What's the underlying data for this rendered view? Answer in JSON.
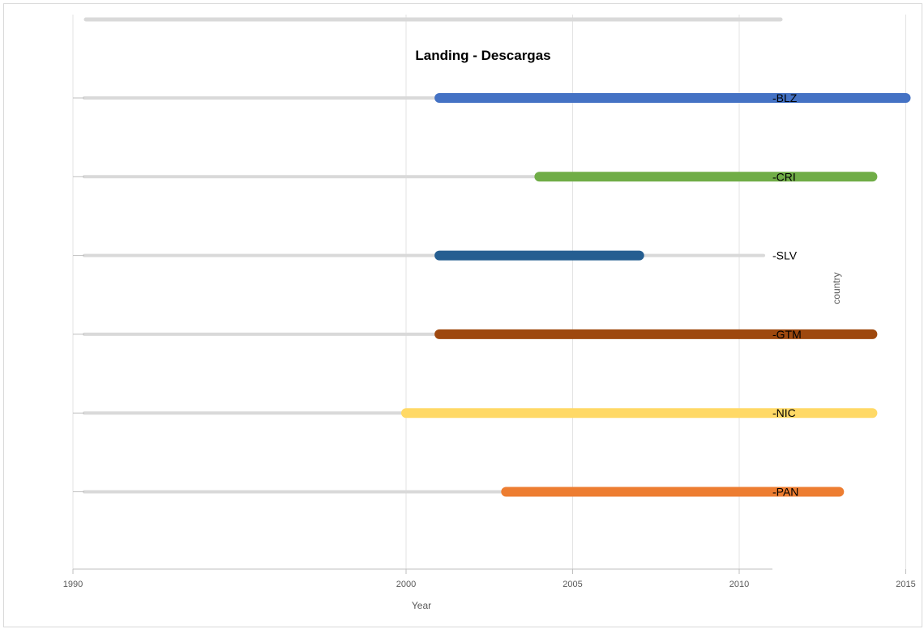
{
  "chart_data": {
    "type": "bar",
    "title": "Landing - Descargas",
    "xlabel": "Year",
    "ylabel": "country",
    "xlim": [
      1990,
      2016
    ],
    "x_ticks": [
      1990,
      2000,
      2005,
      2010,
      2015
    ],
    "grid": true,
    "legend": "none",
    "categories": [
      "BLZ",
      "CRI",
      "SLV",
      "GTM",
      "NIC",
      "PAN"
    ],
    "category_labels": [
      "-BLZ",
      "-CRI",
      "-SLV",
      "-GTM",
      "-NIC",
      "-PAN"
    ],
    "series": [
      {
        "category": "BLZ",
        "start": 2001,
        "end": 2015,
        "color": "#4472c4"
      },
      {
        "category": "CRI",
        "start": 2004,
        "end": 2014,
        "color": "#70ad47"
      },
      {
        "category": "SLV",
        "start": 2001,
        "end": 2007,
        "color": "#255e91"
      },
      {
        "category": "GTM",
        "start": 2001,
        "end": 2014,
        "color": "#9e480e"
      },
      {
        "category": "NIC",
        "start": 2000,
        "end": 2014,
        "color": "#ffd966"
      },
      {
        "category": "PAN",
        "start": 2003,
        "end": 2013,
        "color": "#ed7d31"
      }
    ]
  }
}
